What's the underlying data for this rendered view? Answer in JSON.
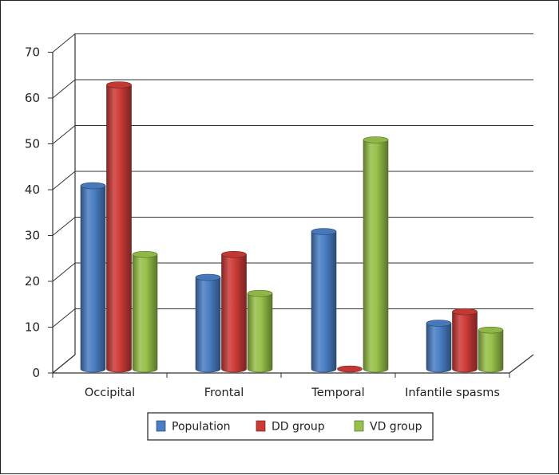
{
  "chart_data": {
    "type": "bar",
    "categories": [
      "Occipital",
      "Frontal",
      "Temporal",
      "Infantile spasms"
    ],
    "series": [
      {
        "name": "Population",
        "values": [
          40,
          20,
          30,
          10
        ],
        "color": "#4a7ec4"
      },
      {
        "name": "DD group",
        "values": [
          62,
          25,
          0,
          12.5
        ],
        "color": "#cc3b38"
      },
      {
        "name": "VD group",
        "values": [
          25,
          16.5,
          50,
          8.5
        ],
        "color": "#97c14a"
      }
    ],
    "ylim": [
      0,
      70
    ],
    "yticks": [
      "0",
      "10",
      "20",
      "30",
      "40",
      "50",
      "60",
      "70"
    ],
    "grid": true,
    "style": "3d-cylinder",
    "legend": "bottom"
  }
}
